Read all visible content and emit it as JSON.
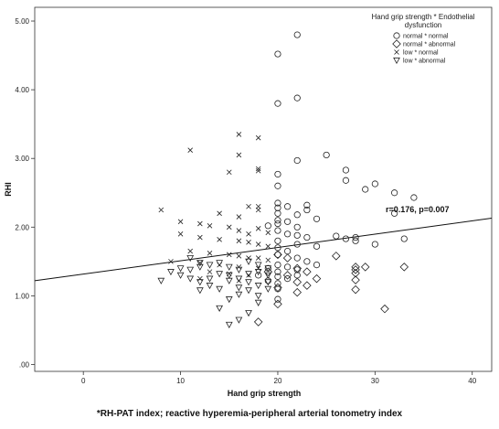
{
  "chart_data": {
    "type": "scatter",
    "xlabel": "Hand grip strength",
    "ylabel": "RHI",
    "xlim": [
      -5,
      42
    ],
    "ylim": [
      -0.1,
      5.2
    ],
    "x_ticks": [
      0,
      10,
      20,
      30,
      40
    ],
    "x_tick_labels": [
      "0",
      "10",
      "20",
      "30",
      "40"
    ],
    "y_ticks": [
      0,
      1,
      2,
      3,
      4,
      5
    ],
    "y_tick_labels": [
      ".00",
      "1.00",
      "2.00",
      "3.00",
      "4.00",
      "5.00"
    ],
    "grid": false,
    "legend_title": "Hand grip strength * Endothelial dysfunction",
    "legend_title_lines": [
      "Hand grip strength * Endothelial",
      "dysfunction"
    ],
    "legend_position": "top-right",
    "annotation": "r=0.176, p=0.007",
    "fit_line": {
      "type": "linear",
      "x": [
        -5,
        42
      ],
      "y": [
        1.22,
        2.13
      ]
    },
    "series": [
      {
        "name": "normal * normal",
        "marker": "circle",
        "points": [
          [
            20,
            4.52
          ],
          [
            22,
            4.8
          ],
          [
            20,
            3.8
          ],
          [
            22,
            3.88
          ],
          [
            22,
            2.97
          ],
          [
            25,
            3.05
          ],
          [
            20,
            2.77
          ],
          [
            20,
            2.6
          ],
          [
            27,
            2.83
          ],
          [
            27,
            2.68
          ],
          [
            30,
            2.63
          ],
          [
            29,
            2.55
          ],
          [
            32,
            2.5
          ],
          [
            34,
            2.43
          ],
          [
            20,
            2.35
          ],
          [
            20,
            2.28
          ],
          [
            23,
            2.32
          ],
          [
            21,
            2.3
          ],
          [
            20,
            2.2
          ],
          [
            22,
            2.18
          ],
          [
            23,
            2.25
          ],
          [
            24,
            2.12
          ],
          [
            20,
            2.1
          ],
          [
            20,
            2.05
          ],
          [
            21,
            2.08
          ],
          [
            19,
            2.02
          ],
          [
            22,
            2.0
          ],
          [
            26,
            1.87
          ],
          [
            28,
            1.85
          ],
          [
            27,
            1.83
          ],
          [
            33,
            1.83
          ],
          [
            20,
            1.95
          ],
          [
            21,
            1.9
          ],
          [
            22,
            1.88
          ],
          [
            23,
            1.85
          ],
          [
            20,
            1.8
          ],
          [
            22,
            1.75
          ],
          [
            24,
            1.72
          ],
          [
            20,
            1.7
          ],
          [
            21,
            1.65
          ],
          [
            20,
            1.6
          ],
          [
            22,
            1.55
          ],
          [
            23,
            1.5
          ],
          [
            20,
            1.45
          ],
          [
            21,
            1.42
          ],
          [
            19,
            1.4
          ],
          [
            20,
            1.35
          ],
          [
            22,
            1.3
          ],
          [
            20,
            1.28
          ],
          [
            21,
            1.25
          ],
          [
            19,
            1.22
          ],
          [
            20,
            1.18
          ],
          [
            20,
            1.1
          ],
          [
            18,
            1.3
          ],
          [
            22,
            1.38
          ],
          [
            24,
            1.45
          ],
          [
            20,
            0.95
          ],
          [
            32,
            2.2
          ],
          [
            28,
            1.8
          ],
          [
            30,
            1.75
          ]
        ]
      },
      {
        "name": "normal * abnormal",
        "marker": "diamond",
        "points": [
          [
            26,
            1.58
          ],
          [
            28,
            1.42
          ],
          [
            28,
            1.38
          ],
          [
            29,
            1.42
          ],
          [
            28,
            1.33
          ],
          [
            28,
            1.23
          ],
          [
            28,
            1.09
          ],
          [
            33,
            1.42
          ],
          [
            31,
            0.81
          ],
          [
            20,
            0.88
          ],
          [
            18,
            0.62
          ],
          [
            22,
            1.4
          ],
          [
            23,
            1.15
          ],
          [
            21,
            1.3
          ],
          [
            24,
            1.25
          ],
          [
            20,
            1.12
          ],
          [
            22,
            1.05
          ],
          [
            19,
            1.35
          ],
          [
            20,
            1.6
          ],
          [
            21,
            1.55
          ],
          [
            23,
            1.35
          ],
          [
            22,
            1.2
          ]
        ]
      },
      {
        "name": "low * normal",
        "marker": "x",
        "points": [
          [
            11,
            3.12
          ],
          [
            16,
            3.35
          ],
          [
            18,
            3.3
          ],
          [
            15,
            2.8
          ],
          [
            16,
            3.05
          ],
          [
            18,
            2.85
          ],
          [
            18,
            2.82
          ],
          [
            8,
            2.25
          ],
          [
            14,
            2.2
          ],
          [
            16,
            2.15
          ],
          [
            17,
            2.3
          ],
          [
            18,
            2.3
          ],
          [
            18,
            2.25
          ],
          [
            10,
            2.08
          ],
          [
            12,
            2.05
          ],
          [
            13,
            2.02
          ],
          [
            15,
            2.0
          ],
          [
            16,
            1.95
          ],
          [
            17,
            1.9
          ],
          [
            18,
            1.98
          ],
          [
            19,
            1.92
          ],
          [
            10,
            1.9
          ],
          [
            12,
            1.85
          ],
          [
            14,
            1.82
          ],
          [
            16,
            1.8
          ],
          [
            17,
            1.78
          ],
          [
            18,
            1.75
          ],
          [
            19,
            1.72
          ],
          [
            11,
            1.65
          ],
          [
            13,
            1.62
          ],
          [
            15,
            1.6
          ],
          [
            16,
            1.58
          ],
          [
            17,
            1.55
          ],
          [
            18,
            1.55
          ],
          [
            19,
            1.52
          ],
          [
            9,
            1.5
          ],
          [
            12,
            1.48
          ],
          [
            14,
            1.45
          ],
          [
            16,
            1.42
          ],
          [
            18,
            1.4
          ],
          [
            13,
            1.35
          ],
          [
            15,
            1.32
          ],
          [
            17,
            1.3
          ],
          [
            12,
            1.25
          ],
          [
            16,
            1.22
          ]
        ]
      },
      {
        "name": "low * abnormal",
        "marker": "triangle-down",
        "points": [
          [
            8,
            1.22
          ],
          [
            9,
            1.35
          ],
          [
            10,
            1.3
          ],
          [
            10,
            1.4
          ],
          [
            11,
            1.38
          ],
          [
            11,
            1.55
          ],
          [
            12,
            1.42
          ],
          [
            12,
            1.48
          ],
          [
            12,
            1.2
          ],
          [
            12,
            1.08
          ],
          [
            13,
            1.45
          ],
          [
            13,
            1.25
          ],
          [
            14,
            1.32
          ],
          [
            14,
            1.48
          ],
          [
            14,
            1.1
          ],
          [
            15,
            1.42
          ],
          [
            15,
            1.3
          ],
          [
            15,
            1.22
          ],
          [
            16,
            1.38
          ],
          [
            16,
            1.25
          ],
          [
            16,
            1.12
          ],
          [
            16,
            1.02
          ],
          [
            16,
            0.65
          ],
          [
            17,
            1.5
          ],
          [
            17,
            1.32
          ],
          [
            17,
            1.2
          ],
          [
            17,
            1.08
          ],
          [
            17,
            0.75
          ],
          [
            18,
            1.45
          ],
          [
            18,
            1.35
          ],
          [
            18,
            1.15
          ],
          [
            18,
            1.0
          ],
          [
            18,
            0.9
          ],
          [
            19,
            1.4
          ],
          [
            19,
            1.3
          ],
          [
            19,
            1.2
          ],
          [
            19,
            1.1
          ],
          [
            15,
            0.58
          ],
          [
            14,
            0.82
          ],
          [
            15,
            0.95
          ],
          [
            13,
            1.15
          ],
          [
            11,
            1.25
          ]
        ]
      }
    ]
  },
  "footnote": "*RH-PAT index; reactive hyperemia-peripheral arterial tonometry index"
}
